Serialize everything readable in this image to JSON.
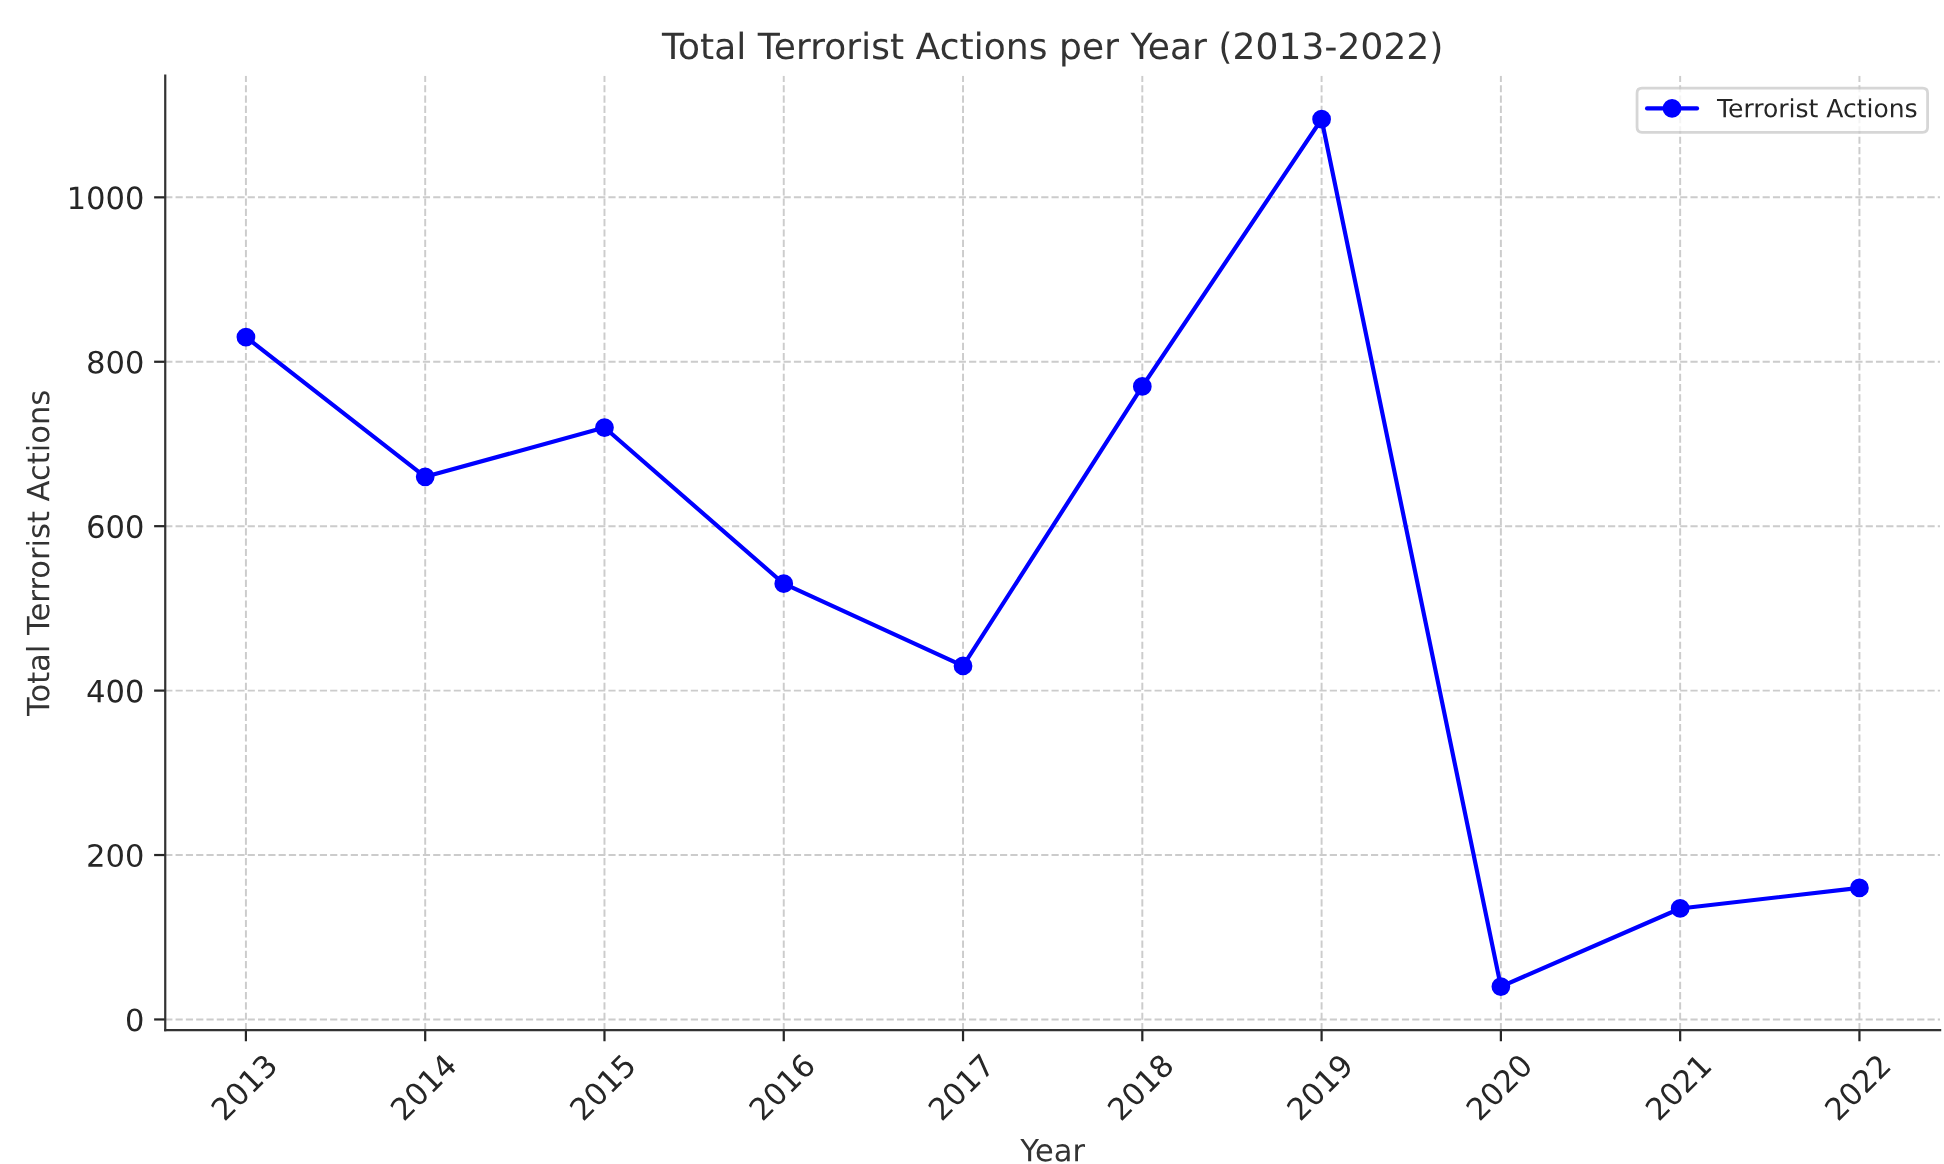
{
  "chart_data": {
    "type": "line",
    "title": "Total Terrorist Actions per Year (2013-2022)",
    "xlabel": "Year",
    "ylabel": "Total Terrorist Actions",
    "x": [
      2013,
      2014,
      2015,
      2016,
      2017,
      2018,
      2019,
      2020,
      2021,
      2022
    ],
    "series": [
      {
        "name": "Terrorist Actions",
        "color": "#0000ff",
        "values": [
          830,
          660,
          720,
          530,
          430,
          770,
          1095,
          40,
          135,
          160
        ]
      }
    ],
    "xlim": [
      2012.55,
      2022.45
    ],
    "xticks": [
      2013,
      2014,
      2015,
      2016,
      2017,
      2018,
      2019,
      2020,
      2021,
      2022
    ],
    "ylim": [
      -13,
      1148
    ],
    "yticks": [
      0,
      200,
      400,
      600,
      800,
      1000
    ],
    "grid": true,
    "legend": "top right",
    "marker": "circle",
    "line_style": "solid"
  }
}
